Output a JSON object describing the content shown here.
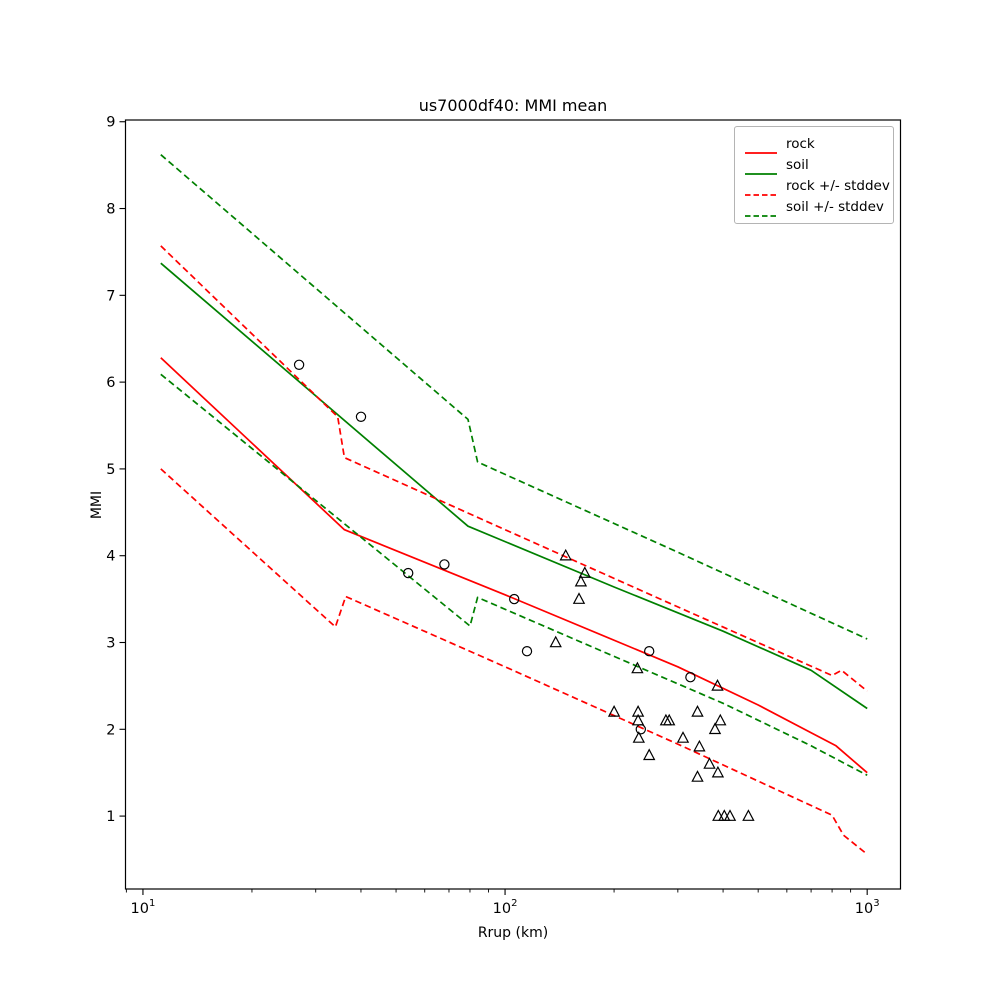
{
  "chart_data": {
    "type": "line",
    "title": "us7000df40: MMI mean",
    "xlabel": "Rrup (km)",
    "ylabel": "MMI",
    "xscale": "log",
    "xlim": [
      8.95,
      1236
    ],
    "ylim": [
      0.16,
      9.02
    ],
    "grid": false,
    "legend_position": "upper right",
    "x_major_tick_exponents": [
      1,
      2,
      3
    ],
    "y_ticks": [
      1,
      2,
      3,
      4,
      5,
      6,
      7,
      8,
      9
    ],
    "colors": {
      "rock": "#ff0000",
      "soil": "#008000",
      "marker_edge": "#000000",
      "axes": "#000000",
      "legend_border": "#b4b4b4"
    },
    "series": [
      {
        "name": "rock",
        "label": "rock",
        "color": "#ff0000",
        "style": "solid",
        "points": [
          [
            11.2,
            6.28
          ],
          [
            36,
            4.3
          ],
          [
            100,
            3.55
          ],
          [
            300,
            2.72
          ],
          [
            500,
            2.28
          ],
          [
            700,
            1.96
          ],
          [
            820,
            1.81
          ],
          [
            1000,
            1.5
          ]
        ]
      },
      {
        "name": "soil",
        "label": "soil",
        "color": "#008000",
        "style": "solid",
        "points": [
          [
            11.2,
            7.37
          ],
          [
            79,
            4.34
          ],
          [
            200,
            3.64
          ],
          [
            400,
            3.13
          ],
          [
            700,
            2.68
          ],
          [
            1000,
            2.24
          ]
        ]
      },
      {
        "name": "rock-plus-stddev",
        "label": "rock +/- stddev",
        "color": "#ff0000",
        "style": "dashed",
        "points": [
          [
            11.2,
            7.57
          ],
          [
            34.5,
            5.6
          ],
          [
            36,
            5.13
          ],
          [
            100,
            4.3
          ],
          [
            300,
            3.41
          ],
          [
            800,
            2.62
          ],
          [
            850,
            2.68
          ],
          [
            1000,
            2.44
          ]
        ]
      },
      {
        "name": "rock-minus-stddev",
        "label": "rock +/- stddev",
        "color": "#ff0000",
        "style": "dashed",
        "points": [
          [
            11.2,
            5.0
          ],
          [
            34,
            3.18
          ],
          [
            36.3,
            3.53
          ],
          [
            100,
            2.72
          ],
          [
            300,
            1.83
          ],
          [
            800,
            1.01
          ],
          [
            860,
            0.78
          ],
          [
            1000,
            0.56
          ]
        ]
      },
      {
        "name": "soil-plus-stddev",
        "label": "soil +/- stddev",
        "color": "#008000",
        "style": "dashed",
        "points": [
          [
            11.2,
            8.62
          ],
          [
            79,
            5.57
          ],
          [
            84,
            5.08
          ],
          [
            300,
            4.04
          ],
          [
            1000,
            3.04
          ]
        ]
      },
      {
        "name": "soil-minus-stddev",
        "label": "soil +/- stddev",
        "color": "#008000",
        "style": "dashed",
        "points": [
          [
            11.2,
            6.09
          ],
          [
            80,
            3.19
          ],
          [
            84,
            3.52
          ],
          [
            200,
            2.84
          ],
          [
            400,
            2.3
          ],
          [
            700,
            1.81
          ],
          [
            1000,
            1.47
          ]
        ]
      }
    ],
    "scatter": [
      {
        "name": "station-circles",
        "marker": "circle",
        "points": [
          [
            27,
            6.2
          ],
          [
            40,
            5.6
          ],
          [
            54,
            3.8
          ],
          [
            68,
            3.9
          ],
          [
            106,
            3.5
          ],
          [
            115,
            2.9
          ],
          [
            250,
            2.9
          ],
          [
            325,
            2.6
          ],
          [
            237,
            2.0
          ]
        ]
      },
      {
        "name": "intensity-triangles",
        "marker": "triangle",
        "points": [
          [
            147,
            4.0
          ],
          [
            166,
            3.8
          ],
          [
            162,
            3.7
          ],
          [
            160,
            3.5
          ],
          [
            138,
            3.0
          ],
          [
            232,
            2.7
          ],
          [
            386,
            2.5
          ],
          [
            200,
            2.2
          ],
          [
            233,
            2.2
          ],
          [
            340,
            2.2
          ],
          [
            233,
            2.1
          ],
          [
            278,
            2.1
          ],
          [
            284,
            2.1
          ],
          [
            393,
            2.1
          ],
          [
            380,
            2.0
          ],
          [
            234,
            1.9
          ],
          [
            310,
            1.9
          ],
          [
            344,
            1.8
          ],
          [
            250,
            1.7
          ],
          [
            367,
            1.6
          ],
          [
            387,
            1.5
          ],
          [
            340,
            1.45
          ],
          [
            388,
            1.0
          ],
          [
            403,
            1.0
          ],
          [
            418,
            1.0
          ],
          [
            470,
            1.0
          ]
        ]
      }
    ],
    "legend": [
      {
        "label": "rock",
        "color": "#ff0000",
        "dash": false
      },
      {
        "label": "soil",
        "color": "#008000",
        "dash": false
      },
      {
        "label": "rock +/- stddev",
        "color": "#ff0000",
        "dash": true
      },
      {
        "label": "soil +/- stddev",
        "color": "#008000",
        "dash": true
      }
    ]
  }
}
